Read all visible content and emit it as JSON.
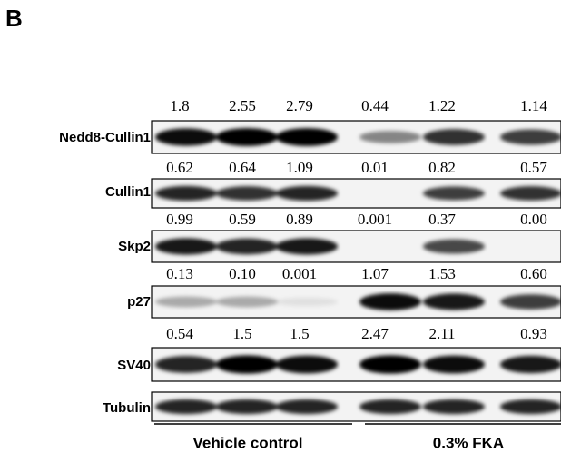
{
  "panel_label": "B",
  "rows": [
    {
      "label": "Nedd8-Cullin1",
      "values": [
        "1.8",
        "2.55",
        "2.79",
        "0.44",
        "1.22",
        "1.14"
      ]
    },
    {
      "label": "Cullin1",
      "values": [
        "0.62",
        "0.64",
        "1.09",
        "0.01",
        "0.82",
        "0.57"
      ]
    },
    {
      "label": "Skp2",
      "values": [
        "0.99",
        "0.59",
        "0.89",
        "0.001",
        "0.37",
        "0.00"
      ]
    },
    {
      "label": "p27",
      "values": [
        "0.13",
        "0.10",
        "0.001",
        "1.07",
        "1.53",
        "0.60"
      ]
    },
    {
      "label": "SV40",
      "values": [
        "0.54",
        "1.5",
        "1.5",
        "2.47",
        "2.11",
        "0.93"
      ]
    },
    {
      "label": "Tubulin",
      "values": []
    }
  ],
  "groups": [
    "Vehicle control",
    "0.3% FKA"
  ]
}
